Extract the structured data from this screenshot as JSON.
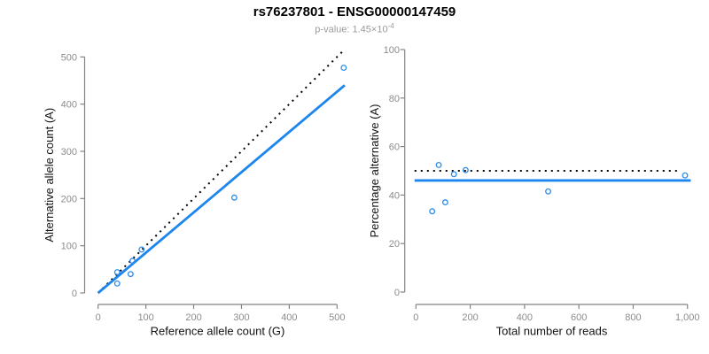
{
  "header": {
    "title": "rs76237801 - ENSG00000147459",
    "pvalue_prefix": "p-value: 1.45×10",
    "pvalue_exponent": "-4"
  },
  "colors": {
    "line_blue": "#1C86EE",
    "point_blue": "#2B8CEA",
    "dotted_black": "#000000",
    "axis_gray": "#848484",
    "tick_label_gray": "#8C8C8C",
    "axis_label_black": "#111111",
    "title_black": "#000000",
    "subtitle_gray": "#9B9B9B",
    "background": "#FFFFFF"
  },
  "chart_data": [
    {
      "type": "scatter",
      "panel": "left",
      "xlabel": "Reference allele count (G)",
      "ylabel": "Alternative allele count (A)",
      "xlim": [
        0,
        520
      ],
      "ylim": [
        0,
        520
      ],
      "xticks": [
        0,
        100,
        200,
        300,
        400,
        500
      ],
      "xtick_labels": [
        "0",
        "100",
        "200",
        "300",
        "400",
        "500"
      ],
      "yticks": [
        0,
        100,
        200,
        300,
        400,
        500
      ],
      "ytick_labels": [
        "0",
        "100",
        "200",
        "300",
        "400",
        "500"
      ],
      "grid": false,
      "legend": false,
      "points": [
        [
          40,
          20
        ],
        [
          40,
          44
        ],
        [
          68,
          40
        ],
        [
          72,
          68
        ],
        [
          91,
          92
        ],
        [
          285,
          202
        ],
        [
          514,
          477
        ]
      ],
      "lines": [
        {
          "name": "identity-50pct",
          "style": "dotted",
          "color": "black",
          "from": [
            0,
            0
          ],
          "to": [
            511,
            511
          ]
        },
        {
          "name": "allelic-fit",
          "style": "solid",
          "color": "blue",
          "from": [
            0,
            0
          ],
          "to": [
            516,
            440
          ]
        }
      ]
    },
    {
      "type": "scatter",
      "panel": "right",
      "xlabel": "Total number of reads",
      "ylabel": "Percentage alternative (A)",
      "xlim": [
        0,
        1040
      ],
      "ylim": [
        0,
        100
      ],
      "xticks": [
        0,
        200,
        400,
        600,
        800,
        1000
      ],
      "xtick_labels": [
        "0",
        "200",
        "400",
        "600",
        "800",
        "1,000"
      ],
      "yticks": [
        0,
        20,
        40,
        60,
        80,
        100
      ],
      "ytick_labels": [
        "0",
        "20",
        "40",
        "60",
        "80",
        "100"
      ],
      "grid": false,
      "legend": false,
      "points": [
        [
          60,
          33.3
        ],
        [
          84,
          52.4
        ],
        [
          108,
          37
        ],
        [
          140,
          48.6
        ],
        [
          183,
          50.3
        ],
        [
          487,
          41.5
        ],
        [
          991,
          48.1
        ]
      ],
      "lines": [
        {
          "name": "expected-50pct",
          "style": "dotted",
          "color": "black",
          "from": [
            -5,
            50
          ],
          "to": [
            972,
            50
          ]
        },
        {
          "name": "fitted-percentage",
          "style": "solid",
          "color": "blue",
          "from": [
            -5,
            46
          ],
          "to": [
            1012,
            46
          ]
        }
      ]
    }
  ]
}
